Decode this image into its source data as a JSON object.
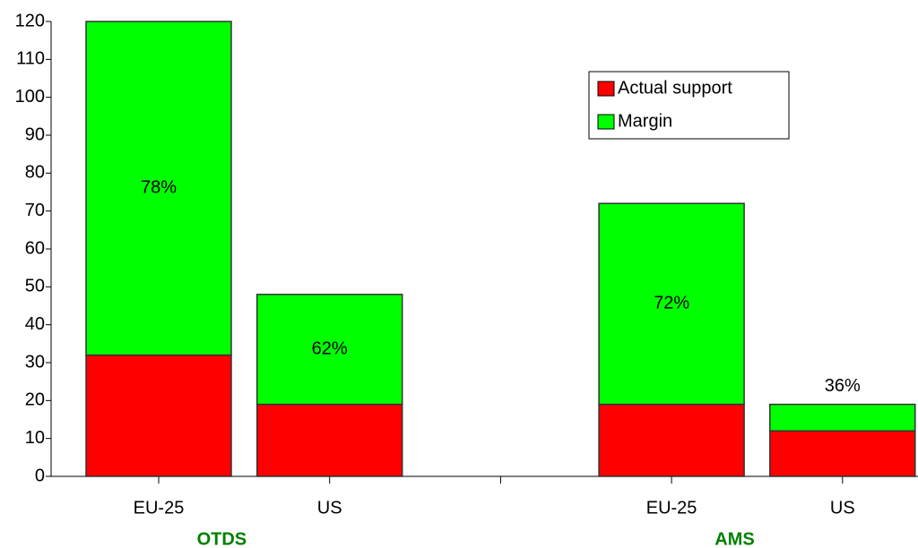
{
  "chart_data": {
    "type": "stacked_bar",
    "categories": [
      "EU-25",
      "US",
      null,
      "EU-25",
      "US"
    ],
    "series": [
      {
        "name": "Actual support",
        "color": "#ff0000",
        "values": [
          32,
          19,
          null,
          19,
          12
        ]
      },
      {
        "name": "Margin",
        "color": "#00ff00",
        "values": [
          88,
          29,
          null,
          53,
          7
        ]
      }
    ],
    "bar_labels": [
      "78%",
      "62%",
      null,
      "72%",
      "36%"
    ],
    "groups": [
      {
        "label": "OTDS",
        "categories": [
          0,
          1
        ]
      },
      {
        "label": "AMS",
        "categories": [
          3,
          4
        ]
      }
    ],
    "group_label_color": "#008000",
    "ylim": [
      0,
      120
    ],
    "yticks": [
      0,
      10,
      20,
      30,
      40,
      50,
      60,
      70,
      80,
      90,
      100,
      110,
      120
    ],
    "grid": false
  }
}
